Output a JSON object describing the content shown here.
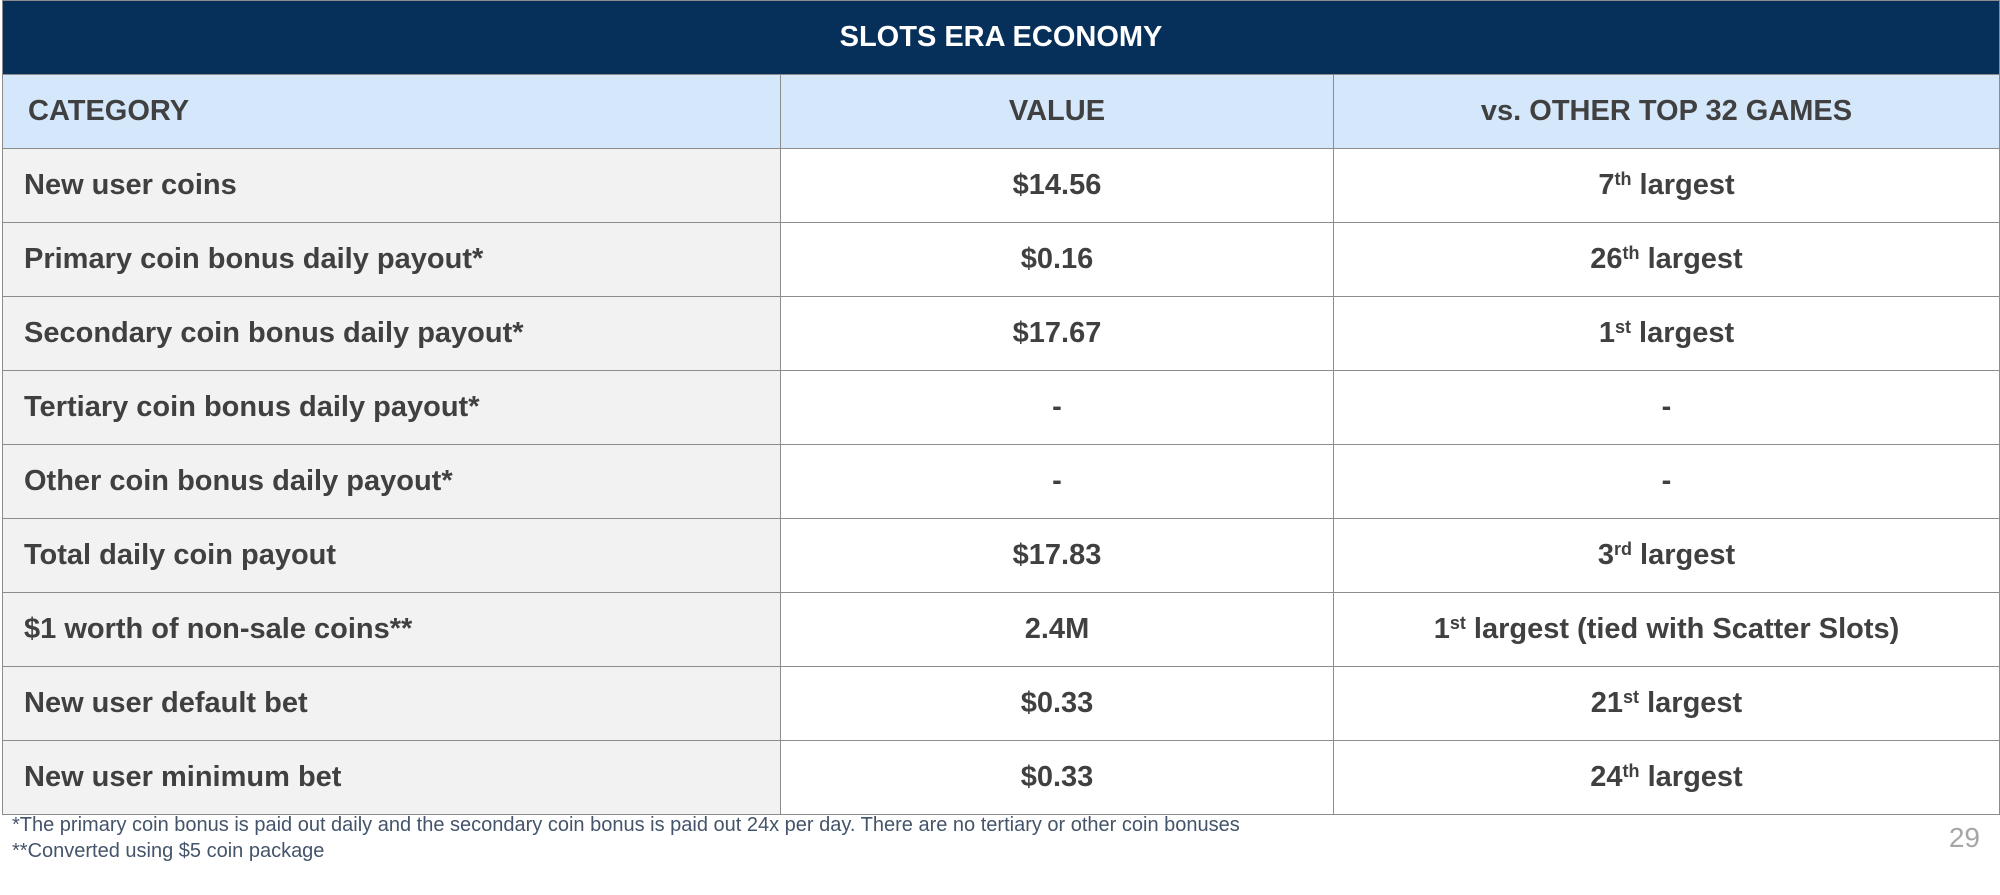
{
  "table": {
    "title": "SLOTS ERA ECONOMY",
    "headers": {
      "category": "CATEGORY",
      "value": "VALUE",
      "comparison": "vs. OTHER TOP 32 GAMES"
    },
    "rows": [
      {
        "category": "New user coins",
        "value": "$14.56",
        "rank": "7",
        "suffix": "th",
        "rest": " largest"
      },
      {
        "category": "Primary coin bonus daily payout*",
        "value": "$0.16",
        "rank": "26",
        "suffix": "th",
        "rest": " largest"
      },
      {
        "category": "Secondary coin bonus daily payout*",
        "value": "$17.67",
        "rank": "1",
        "suffix": "st",
        "rest": " largest"
      },
      {
        "category": "Tertiary coin bonus daily payout*",
        "value": "-",
        "rank": "-",
        "suffix": "",
        "rest": ""
      },
      {
        "category": "Other coin bonus daily payout*",
        "value": "-",
        "rank": "-",
        "suffix": "",
        "rest": ""
      },
      {
        "category": "Total daily coin payout",
        "value": "$17.83",
        "rank": "3",
        "suffix": "rd",
        "rest": " largest"
      },
      {
        "category": "$1 worth of non-sale coins**",
        "value": "2.4M",
        "rank": "1",
        "suffix": "st",
        "rest": " largest (tied with Scatter Slots)"
      },
      {
        "category": "New user default bet",
        "value": "$0.33",
        "rank": "21",
        "suffix": "st",
        "rest": " largest"
      },
      {
        "category": "New user minimum bet",
        "value": "$0.33",
        "rank": "24",
        "suffix": "th",
        "rest": " largest"
      }
    ]
  },
  "footnotes": {
    "first": "*The primary coin bonus is paid out daily and the secondary coin bonus is paid out 24x per day. There are no tertiary or other coin bonuses",
    "second": "**Converted using $5 coin package"
  },
  "page_number": "29"
}
